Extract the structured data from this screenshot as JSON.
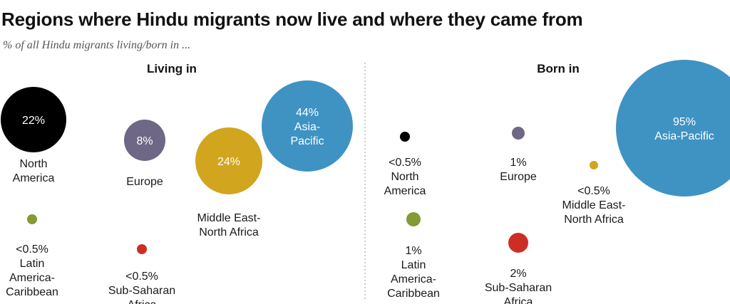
{
  "title": "Regions where Hindu migrants now live and where they came from",
  "subtitle": "% of all Hindu migrants living/born in ...",
  "colors": {
    "North America": "#000000",
    "Europe": "#6e6785",
    "Middle East-North Africa": "#d2a51e",
    "Asia-Pacific": "#3e93c3",
    "Latin America-Caribbean": "#849a33",
    "Sub-Saharan Africa": "#cc2e25"
  },
  "chart_data": [
    {
      "type": "bubble",
      "title": "Living in",
      "points": [
        {
          "region": "North America",
          "value_label": "22%",
          "name_lines": [
            "North",
            "America"
          ],
          "label_inside": true
        },
        {
          "region": "Europe",
          "value_label": "8%",
          "name_lines": [
            "Europe"
          ],
          "label_inside": true
        },
        {
          "region": "Middle East-North Africa",
          "value_label": "24%",
          "name_lines": [
            "Middle East-",
            "North Africa"
          ],
          "label_inside": true
        },
        {
          "region": "Asia-Pacific",
          "value_label": "44%",
          "name_lines": [
            "Asia-",
            "Pacific"
          ],
          "label_inside": true
        },
        {
          "region": "Latin America-Caribbean",
          "value_label": "<0.5%",
          "name_lines": [
            "Latin",
            "America-",
            "Caribbean"
          ],
          "label_inside": false
        },
        {
          "region": "Sub-Saharan Africa",
          "value_label": "<0.5%",
          "name_lines": [
            "Sub-Saharan",
            "Africa"
          ],
          "label_inside": false
        }
      ]
    },
    {
      "type": "bubble",
      "title": "Born in",
      "points": [
        {
          "region": "North America",
          "value_label": "<0.5%",
          "name_lines": [
            "North",
            "America"
          ],
          "label_inside": false
        },
        {
          "region": "Europe",
          "value_label": "1%",
          "name_lines": [
            "Europe"
          ],
          "label_inside": false
        },
        {
          "region": "Middle East-North Africa",
          "value_label": "<0.5%",
          "name_lines": [
            "Middle East-",
            "North Africa"
          ],
          "label_inside": false
        },
        {
          "region": "Asia-Pacific",
          "value_label": "95%",
          "name_lines": [
            "Asia-Pacific"
          ],
          "label_inside": true
        },
        {
          "region": "Latin America-Caribbean",
          "value_label": "1%",
          "name_lines": [
            "Latin",
            "America-",
            "Caribbean"
          ],
          "label_inside": false
        },
        {
          "region": "Sub-Saharan Africa",
          "value_label": "2%",
          "name_lines": [
            "Sub-Saharan",
            "Africa"
          ],
          "label_inside": false
        }
      ]
    }
  ]
}
